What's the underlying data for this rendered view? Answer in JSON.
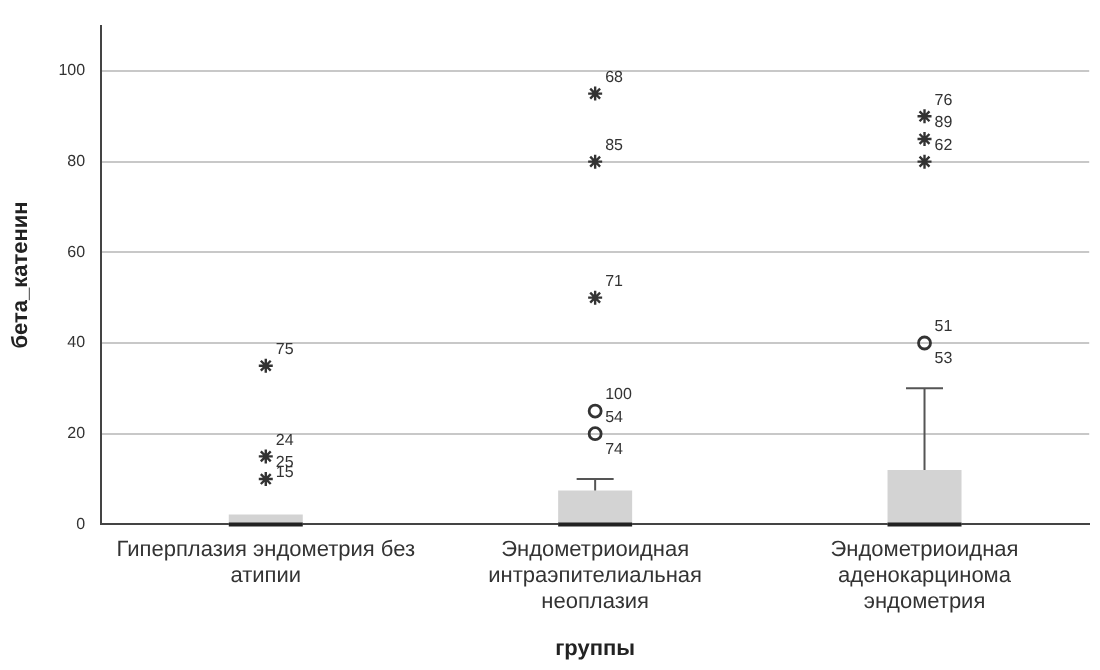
{
  "chart_data": {
    "type": "box",
    "xlabel": "группы",
    "ylabel": "бета_катенин",
    "categories": [
      "Гиперплазия эндометрия без атипии",
      "Эндометриоидная интраэпителиальная неоплазия",
      "Эндометриоидная аденокарцинома эндометрия"
    ],
    "series": [
      {
        "type": "box",
        "color": "#d3d3d3",
        "boxes": [
          {
            "low": 0,
            "q1": 0,
            "median": 0,
            "q3": 0,
            "high": 0
          },
          {
            "low": 0,
            "q1": 0,
            "median": 0,
            "q3": 7.5,
            "high": 10
          },
          {
            "low": 0,
            "q1": 0,
            "median": 0,
            "q3": 12,
            "high": 30
          }
        ]
      },
      {
        "type": "scatter",
        "marker": "circle",
        "color": "#333333",
        "x": [
          "Эндометриоидная интраэпителиальная неоплазия",
          "Эндометриоидная интраэпителиальная неоплазия",
          "Эндометриоидная аденокарцинома эндометрия"
        ],
        "values": [
          20,
          25,
          40
        ]
      },
      {
        "type": "scatter",
        "marker": "cross",
        "color": "#333333",
        "x": [
          "Гиперплазия эндометрия без атипии",
          "Гиперплазия эндометрия без атипии",
          "Гиперплазия эндометрия без атипии",
          "Эндометриоидная интраэпителиальная неоплазия",
          "Эндометриоидная интраэпителиальная неоплазия",
          "Эндометриоидная интраэпителиальная неоплазия",
          "Эндометриоидная аденокарцинома эндометрия",
          "Эндометриоидная аденокарцинома эндометрия",
          "Эндометриоидная аденокарцинома эндометрия"
        ],
        "values": [
          35,
          15,
          10,
          50,
          80,
          95,
          90,
          85,
          80
        ]
      }
    ],
    "annotations": [
      {
        "text": "75",
        "x": "Гиперплазия эндометрия без атипии",
        "y": 35
      },
      {
        "text": "24",
        "x": "Гиперплазия эндометрия без атипии",
        "y": 15
      },
      {
        "text": "15",
        "x": "Гиперплазия эндометрия без атипии",
        "y": 15
      },
      {
        "text": "25",
        "x": "Гиперплазия эндометрия без атипии",
        "y": 10
      },
      {
        "text": "68",
        "x": "Эндометриоидная интраэпителиальная неоплазия",
        "y": 95
      },
      {
        "text": "85",
        "x": "Эндометриоидная интраэпителиальная неоплазия",
        "y": 80
      },
      {
        "text": "71",
        "x": "Эндометриоидная интраэпителиальная неоплазия",
        "y": 50
      },
      {
        "text": "100",
        "x": "Эндометриоидная интраэпителиальная неоплазия",
        "y": 25
      },
      {
        "text": "54",
        "x": "Эндометриоидная интраэпителиальная неоплазия",
        "y": 20
      },
      {
        "text": "74",
        "x": "Эндометриоидная интраэпителиальная неоплазия",
        "y": 20
      },
      {
        "text": "76",
        "x": "Эндометриоидная аденокарцинома эндометрия",
        "y": 90
      },
      {
        "text": "89",
        "x": "Эндометриоидная аденокарцинома эндометрия",
        "y": 85
      },
      {
        "text": "62",
        "x": "Эндометриоидная аденокарцинома эндометрия",
        "y": 80
      },
      {
        "text": "51",
        "x": "Эндометриоидная аденокарцинома эндометрия",
        "y": 40
      },
      {
        "text": "53",
        "x": "Эндометриоидная аденокарцинома эндометрия",
        "y": 40
      }
    ],
    "ylim": [
      0,
      110
    ],
    "yticks": [
      0,
      20,
      40,
      60,
      80,
      100
    ],
    "grid": "y",
    "legend": false
  }
}
